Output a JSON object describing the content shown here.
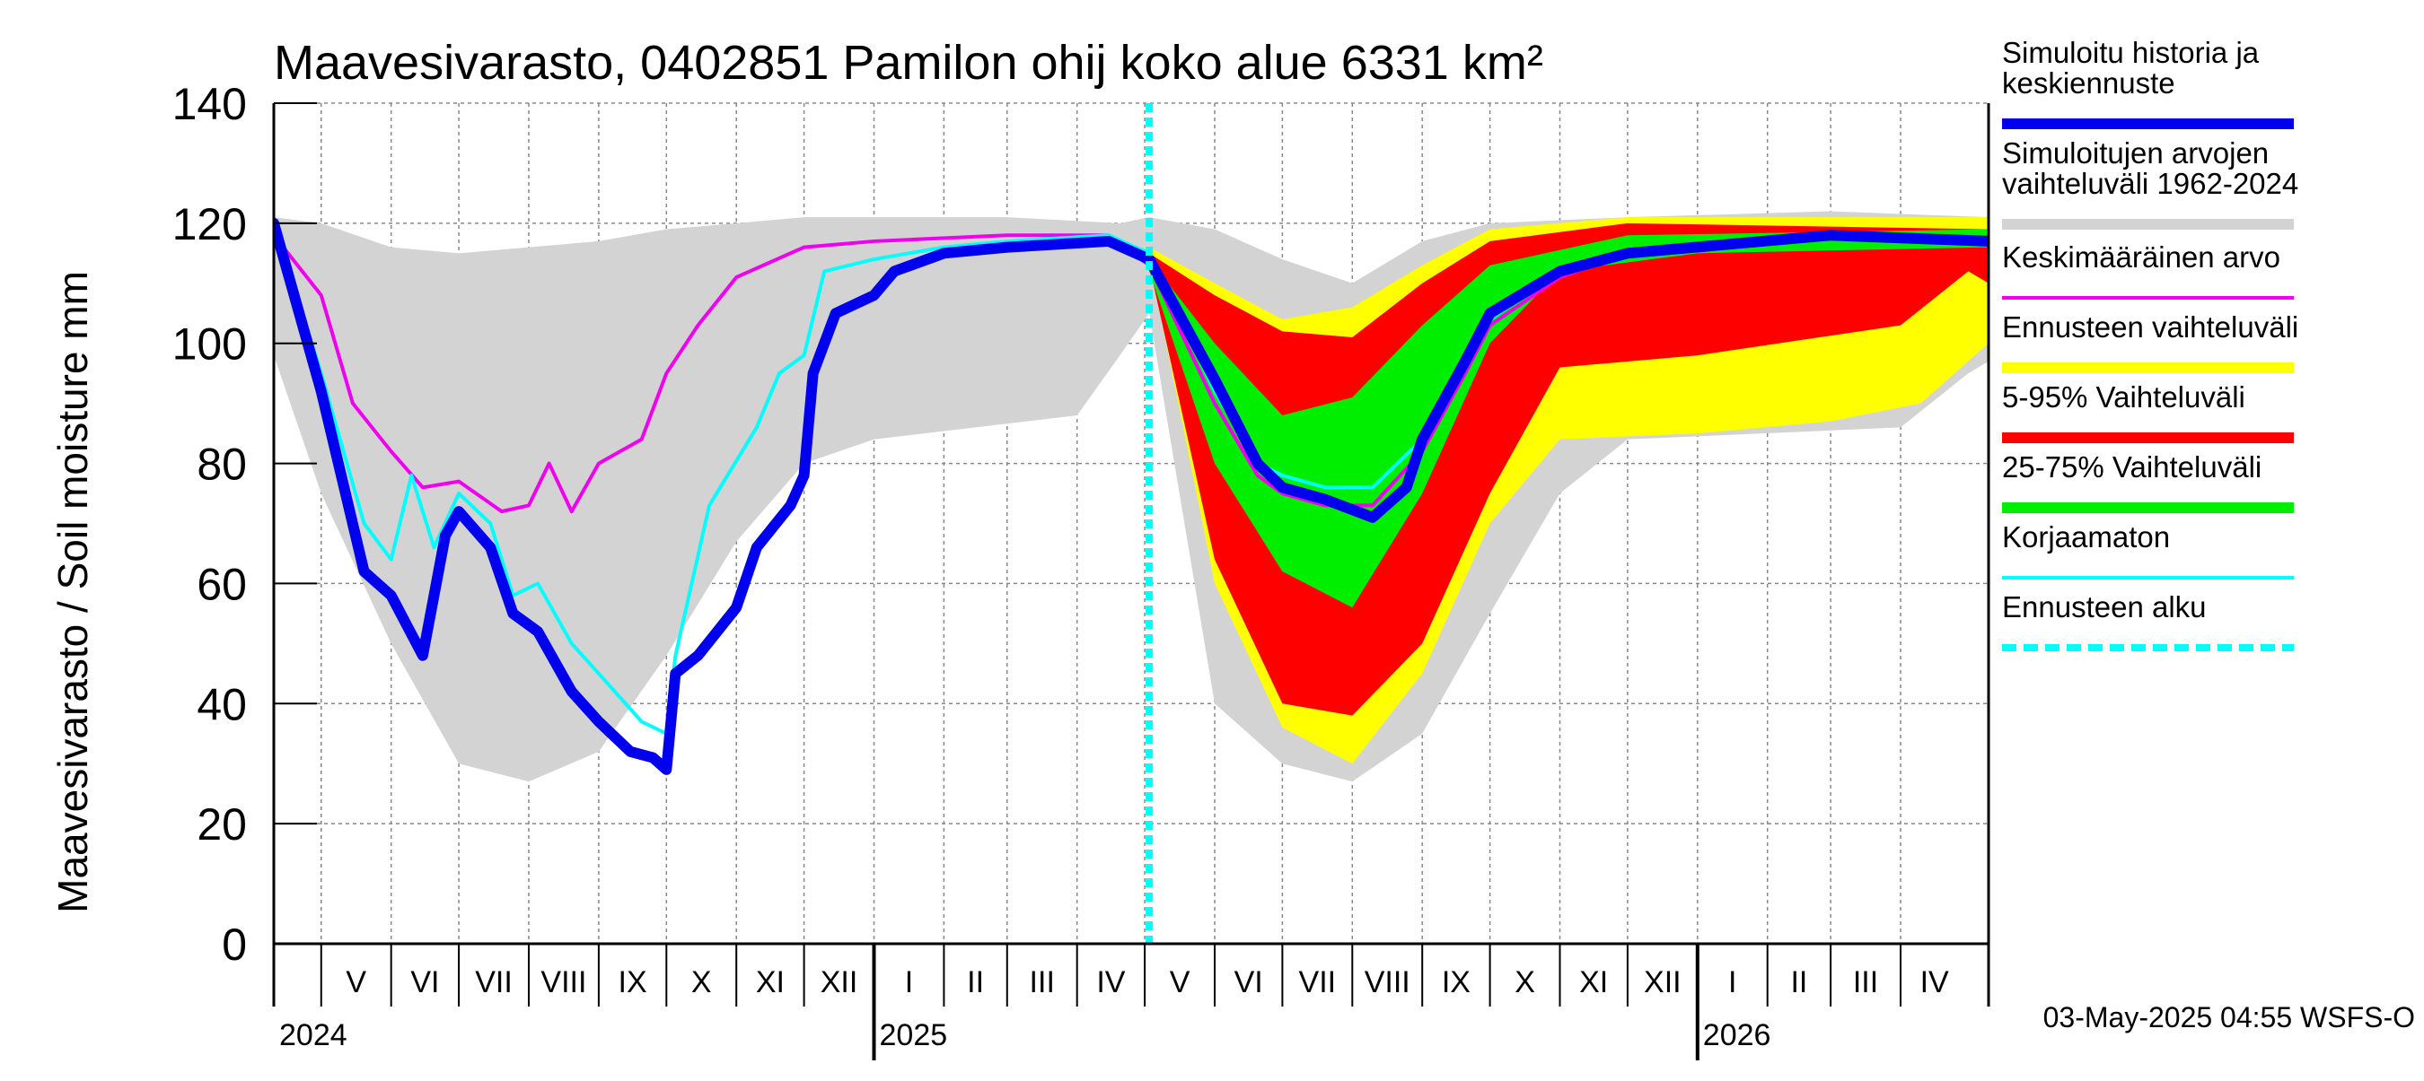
{
  "chart_data": {
    "type": "area",
    "title": "Maavesivarasto, 0402851 Pamilon ohij koko alue 6331 km²",
    "ylabel": "Maavesivarasto / Soil moisture   mm",
    "ylim": [
      0,
      140
    ],
    "yticks": [
      0,
      20,
      40,
      60,
      80,
      100,
      120,
      140
    ],
    "x_range": [
      "2024-04-10",
      "2026-05-10"
    ],
    "forecast_start": "2025-05-03",
    "grid": true,
    "legend_position": "right",
    "months": [
      {
        "label": "V",
        "start": "2024-05-01",
        "end": "2024-06-01"
      },
      {
        "label": "VI",
        "start": "2024-06-01",
        "end": "2024-07-01"
      },
      {
        "label": "VII",
        "start": "2024-07-01",
        "end": "2024-08-01"
      },
      {
        "label": "VIII",
        "start": "2024-08-01",
        "end": "2024-09-01"
      },
      {
        "label": "IX",
        "start": "2024-09-01",
        "end": "2024-10-01"
      },
      {
        "label": "X",
        "start": "2024-10-01",
        "end": "2024-11-01"
      },
      {
        "label": "XI",
        "start": "2024-11-01",
        "end": "2024-12-01"
      },
      {
        "label": "XII",
        "start": "2024-12-01",
        "end": "2025-01-01"
      },
      {
        "label": "I",
        "start": "2025-01-01",
        "end": "2025-02-01"
      },
      {
        "label": "II",
        "start": "2025-02-01",
        "end": "2025-03-01"
      },
      {
        "label": "III",
        "start": "2025-03-01",
        "end": "2025-04-01"
      },
      {
        "label": "IV",
        "start": "2025-04-01",
        "end": "2025-05-01"
      },
      {
        "label": "V",
        "start": "2025-05-01",
        "end": "2025-06-01"
      },
      {
        "label": "VI",
        "start": "2025-06-01",
        "end": "2025-07-01"
      },
      {
        "label": "VII",
        "start": "2025-07-01",
        "end": "2025-08-01"
      },
      {
        "label": "VIII",
        "start": "2025-08-01",
        "end": "2025-09-01"
      },
      {
        "label": "IX",
        "start": "2025-09-01",
        "end": "2025-10-01"
      },
      {
        "label": "X",
        "start": "2025-10-01",
        "end": "2025-11-01"
      },
      {
        "label": "XI",
        "start": "2025-11-01",
        "end": "2025-12-01"
      },
      {
        "label": "XII",
        "start": "2025-12-01",
        "end": "2026-01-01"
      },
      {
        "label": "I",
        "start": "2026-01-01",
        "end": "2026-02-01"
      },
      {
        "label": "II",
        "start": "2026-02-01",
        "end": "2026-03-01"
      },
      {
        "label": "III",
        "start": "2026-03-01",
        "end": "2026-04-01"
      },
      {
        "label": "IV",
        "start": "2026-04-01",
        "end": "2026-05-01"
      }
    ],
    "years": [
      {
        "label": "2024",
        "date": "2024-04-10"
      },
      {
        "label": "2025",
        "date": "2025-01-01"
      },
      {
        "label": "2026",
        "date": "2026-01-01"
      }
    ],
    "legend": [
      {
        "label": "Simuloitu historia ja\nkeskiennuste",
        "color": "#0000ee",
        "style": "thick"
      },
      {
        "label": "Simuloitujen arvojen\nvaihteluväli 1962-2024",
        "color": "#d3d3d3",
        "style": "thick"
      },
      {
        "label": "Keskimääräinen arvo",
        "color": "#ee00ee",
        "style": "thin"
      },
      {
        "label": "Ennusteen vaihteluväli",
        "color": "#ffff00",
        "style": "thick"
      },
      {
        "label": "5-95% Vaihteluväli",
        "color": "#ff0000",
        "style": "thick"
      },
      {
        "label": "25-75% Vaihteluväli",
        "color": "#00ee00",
        "style": "thick"
      },
      {
        "label": "Korjaamaton",
        "color": "#00ffff",
        "style": "thin"
      },
      {
        "label": "Ennusteen alku",
        "color": "#00ffff",
        "style": "dashed"
      }
    ],
    "series": [
      {
        "name": "Simuloitujen arvojen vaihteluväli 1962-2024",
        "kind": "band",
        "color": "#d3d3d3",
        "upper": [
          [
            "2024-04-10",
            121
          ],
          [
            "2024-05-01",
            120
          ],
          [
            "2024-06-01",
            116
          ],
          [
            "2024-07-01",
            115
          ],
          [
            "2024-08-01",
            116
          ],
          [
            "2024-09-01",
            117
          ],
          [
            "2024-10-01",
            119
          ],
          [
            "2024-11-01",
            120
          ],
          [
            "2024-12-01",
            121
          ],
          [
            "2025-03-01",
            121
          ],
          [
            "2025-04-20",
            120
          ],
          [
            "2025-05-03",
            121
          ],
          [
            "2025-06-01",
            119
          ],
          [
            "2025-07-01",
            114
          ],
          [
            "2025-08-01",
            110
          ],
          [
            "2025-09-01",
            117
          ],
          [
            "2025-10-01",
            120
          ],
          [
            "2025-12-01",
            121
          ],
          [
            "2026-03-01",
            122
          ],
          [
            "2026-05-10",
            121
          ]
        ],
        "lower": [
          [
            "2024-04-10",
            98
          ],
          [
            "2024-05-01",
            75
          ],
          [
            "2024-06-01",
            50
          ],
          [
            "2024-07-01",
            30
          ],
          [
            "2024-08-01",
            27
          ],
          [
            "2024-09-01",
            32
          ],
          [
            "2024-10-01",
            48
          ],
          [
            "2024-11-01",
            67
          ],
          [
            "2024-12-01",
            80
          ],
          [
            "2025-01-01",
            84
          ],
          [
            "2025-04-01",
            88
          ],
          [
            "2025-04-20",
            98
          ],
          [
            "2025-05-03",
            105
          ],
          [
            "2025-06-01",
            40
          ],
          [
            "2025-07-01",
            30
          ],
          [
            "2025-08-01",
            27
          ],
          [
            "2025-09-01",
            35
          ],
          [
            "2025-10-01",
            55
          ],
          [
            "2025-11-01",
            75
          ],
          [
            "2025-12-01",
            84
          ],
          [
            "2026-04-01",
            86
          ],
          [
            "2026-05-01",
            95
          ],
          [
            "2026-05-10",
            97
          ]
        ]
      },
      {
        "name": "Ennusteen vaihteluväli",
        "kind": "band",
        "color": "#ffff00",
        "upper": [
          [
            "2025-05-03",
            116
          ],
          [
            "2025-06-01",
            110
          ],
          [
            "2025-07-01",
            104
          ],
          [
            "2025-08-01",
            106
          ],
          [
            "2025-09-01",
            113
          ],
          [
            "2025-10-01",
            119
          ],
          [
            "2025-12-01",
            121
          ],
          [
            "2026-05-10",
            121
          ]
        ],
        "lower": [
          [
            "2025-05-03",
            114
          ],
          [
            "2025-06-01",
            60
          ],
          [
            "2025-07-01",
            36
          ],
          [
            "2025-08-01",
            30
          ],
          [
            "2025-09-01",
            45
          ],
          [
            "2025-10-01",
            70
          ],
          [
            "2025-11-01",
            84
          ],
          [
            "2026-01-01",
            85
          ],
          [
            "2026-03-01",
            87
          ],
          [
            "2026-04-10",
            90
          ],
          [
            "2026-05-10",
            100
          ]
        ]
      },
      {
        "name": "5-95% Vaihteluväli",
        "kind": "band",
        "color": "#ff0000",
        "upper": [
          [
            "2025-05-03",
            115
          ],
          [
            "2025-06-01",
            108
          ],
          [
            "2025-07-01",
            102
          ],
          [
            "2025-08-01",
            101
          ],
          [
            "2025-09-01",
            110
          ],
          [
            "2025-10-01",
            117
          ],
          [
            "2025-12-01",
            120
          ],
          [
            "2026-05-10",
            119
          ]
        ],
        "lower": [
          [
            "2025-05-03",
            113
          ],
          [
            "2025-06-01",
            64
          ],
          [
            "2025-07-01",
            40
          ],
          [
            "2025-08-01",
            38
          ],
          [
            "2025-09-01",
            50
          ],
          [
            "2025-10-01",
            75
          ],
          [
            "2025-11-01",
            96
          ],
          [
            "2026-01-01",
            98
          ],
          [
            "2026-04-01",
            103
          ],
          [
            "2026-05-01",
            112
          ],
          [
            "2026-05-10",
            110
          ]
        ]
      },
      {
        "name": "25-75% Vaihteluväli",
        "kind": "band",
        "color": "#00ee00",
        "upper": [
          [
            "2025-05-03",
            114
          ],
          [
            "2025-06-01",
            100
          ],
          [
            "2025-07-01",
            88
          ],
          [
            "2025-08-01",
            91
          ],
          [
            "2025-09-01",
            103
          ],
          [
            "2025-10-01",
            113
          ],
          [
            "2025-12-01",
            118
          ],
          [
            "2026-05-10",
            119
          ]
        ],
        "lower": [
          [
            "2025-05-03",
            112
          ],
          [
            "2025-06-01",
            80
          ],
          [
            "2025-07-01",
            62
          ],
          [
            "2025-08-01",
            56
          ],
          [
            "2025-09-01",
            75
          ],
          [
            "2025-10-01",
            100
          ],
          [
            "2025-11-01",
            112
          ],
          [
            "2026-01-01",
            115
          ],
          [
            "2026-05-10",
            116
          ]
        ]
      },
      {
        "name": "Keskimääräinen arvo",
        "kind": "line",
        "color": "#ee00ee",
        "width": 4,
        "points": [
          [
            "2024-04-10",
            118
          ],
          [
            "2024-05-01",
            108
          ],
          [
            "2024-05-15",
            90
          ],
          [
            "2024-06-01",
            82
          ],
          [
            "2024-06-15",
            76
          ],
          [
            "2024-07-01",
            77
          ],
          [
            "2024-07-20",
            72
          ],
          [
            "2024-08-01",
            73
          ],
          [
            "2024-08-10",
            80
          ],
          [
            "2024-08-20",
            72
          ],
          [
            "2024-09-01",
            80
          ],
          [
            "2024-09-20",
            84
          ],
          [
            "2024-10-01",
            95
          ],
          [
            "2024-10-15",
            103
          ],
          [
            "2024-11-01",
            111
          ],
          [
            "2024-12-01",
            116
          ],
          [
            "2025-01-01",
            117
          ],
          [
            "2025-03-01",
            118
          ],
          [
            "2025-04-15",
            118
          ],
          [
            "2025-05-03",
            113
          ],
          [
            "2025-06-01",
            90
          ],
          [
            "2025-06-20",
            78
          ],
          [
            "2025-07-01",
            75
          ],
          [
            "2025-07-20",
            73
          ],
          [
            "2025-08-10",
            73
          ],
          [
            "2025-09-01",
            82
          ],
          [
            "2025-09-20",
            95
          ],
          [
            "2025-10-01",
            103
          ],
          [
            "2025-11-01",
            111
          ],
          [
            "2025-12-01",
            115
          ],
          [
            "2026-03-01",
            118
          ],
          [
            "2026-05-10",
            117
          ]
        ]
      },
      {
        "name": "Korjaamaton",
        "kind": "line",
        "color": "#00ffff",
        "width": 4,
        "points": [
          [
            "2024-04-10",
            120
          ],
          [
            "2024-05-01",
            95
          ],
          [
            "2024-05-20",
            70
          ],
          [
            "2024-06-01",
            64
          ],
          [
            "2024-06-10",
            78
          ],
          [
            "2024-06-20",
            66
          ],
          [
            "2024-07-01",
            75
          ],
          [
            "2024-07-15",
            70
          ],
          [
            "2024-07-25",
            58
          ],
          [
            "2024-08-05",
            60
          ],
          [
            "2024-08-20",
            50
          ],
          [
            "2024-09-01",
            45
          ],
          [
            "2024-09-20",
            37
          ],
          [
            "2024-10-01",
            35
          ],
          [
            "2024-10-05",
            48
          ],
          [
            "2024-10-20",
            73
          ],
          [
            "2024-11-10",
            86
          ],
          [
            "2024-11-20",
            95
          ],
          [
            "2024-12-01",
            98
          ],
          [
            "2024-12-10",
            112
          ],
          [
            "2025-01-01",
            114
          ],
          [
            "2025-02-01",
            116
          ],
          [
            "2025-03-01",
            117
          ],
          [
            "2025-04-15",
            118
          ],
          [
            "2025-05-03",
            115
          ],
          [
            "2025-06-01",
            92
          ],
          [
            "2025-06-20",
            80
          ],
          [
            "2025-07-01",
            78
          ],
          [
            "2025-07-20",
            76
          ],
          [
            "2025-08-10",
            76
          ],
          [
            "2025-09-01",
            84
          ],
          [
            "2025-09-20",
            96
          ],
          [
            "2025-10-01",
            104
          ],
          [
            "2025-11-01",
            112
          ],
          [
            "2025-12-01",
            115
          ],
          [
            "2026-03-01",
            118
          ],
          [
            "2026-05-10",
            117
          ]
        ]
      },
      {
        "name": "Simuloitu historia ja keskiennuste",
        "kind": "line",
        "color": "#0000ee",
        "width": 12,
        "points": [
          [
            "2024-04-10",
            120
          ],
          [
            "2024-05-01",
            92
          ],
          [
            "2024-05-20",
            62
          ],
          [
            "2024-06-01",
            58
          ],
          [
            "2024-06-15",
            48
          ],
          [
            "2024-06-25",
            68
          ],
          [
            "2024-07-01",
            72
          ],
          [
            "2024-07-15",
            66
          ],
          [
            "2024-07-25",
            55
          ],
          [
            "2024-08-05",
            52
          ],
          [
            "2024-08-20",
            42
          ],
          [
            "2024-09-01",
            37
          ],
          [
            "2024-09-15",
            32
          ],
          [
            "2024-09-25",
            31
          ],
          [
            "2024-10-01",
            29
          ],
          [
            "2024-10-05",
            45
          ],
          [
            "2024-10-15",
            48
          ],
          [
            "2024-11-01",
            56
          ],
          [
            "2024-11-10",
            66
          ],
          [
            "2024-11-25",
            73
          ],
          [
            "2024-12-01",
            78
          ],
          [
            "2024-12-05",
            95
          ],
          [
            "2024-12-15",
            105
          ],
          [
            "2025-01-01",
            108
          ],
          [
            "2025-01-10",
            112
          ],
          [
            "2025-02-01",
            115
          ],
          [
            "2025-03-01",
            116
          ],
          [
            "2025-04-15",
            117
          ],
          [
            "2025-05-03",
            114
          ],
          [
            "2025-06-01",
            94
          ],
          [
            "2025-06-20",
            80
          ],
          [
            "2025-07-01",
            76
          ],
          [
            "2025-07-20",
            74
          ],
          [
            "2025-08-10",
            71
          ],
          [
            "2025-08-25",
            76
          ],
          [
            "2025-09-01",
            84
          ],
          [
            "2025-09-20",
            97
          ],
          [
            "2025-10-01",
            105
          ],
          [
            "2025-11-01",
            112
          ],
          [
            "2025-12-01",
            115
          ],
          [
            "2026-03-01",
            118
          ],
          [
            "2026-05-10",
            117
          ]
        ]
      }
    ]
  },
  "footer": {
    "timestamp": "03-May-2025 04:55 WSFS-O"
  }
}
